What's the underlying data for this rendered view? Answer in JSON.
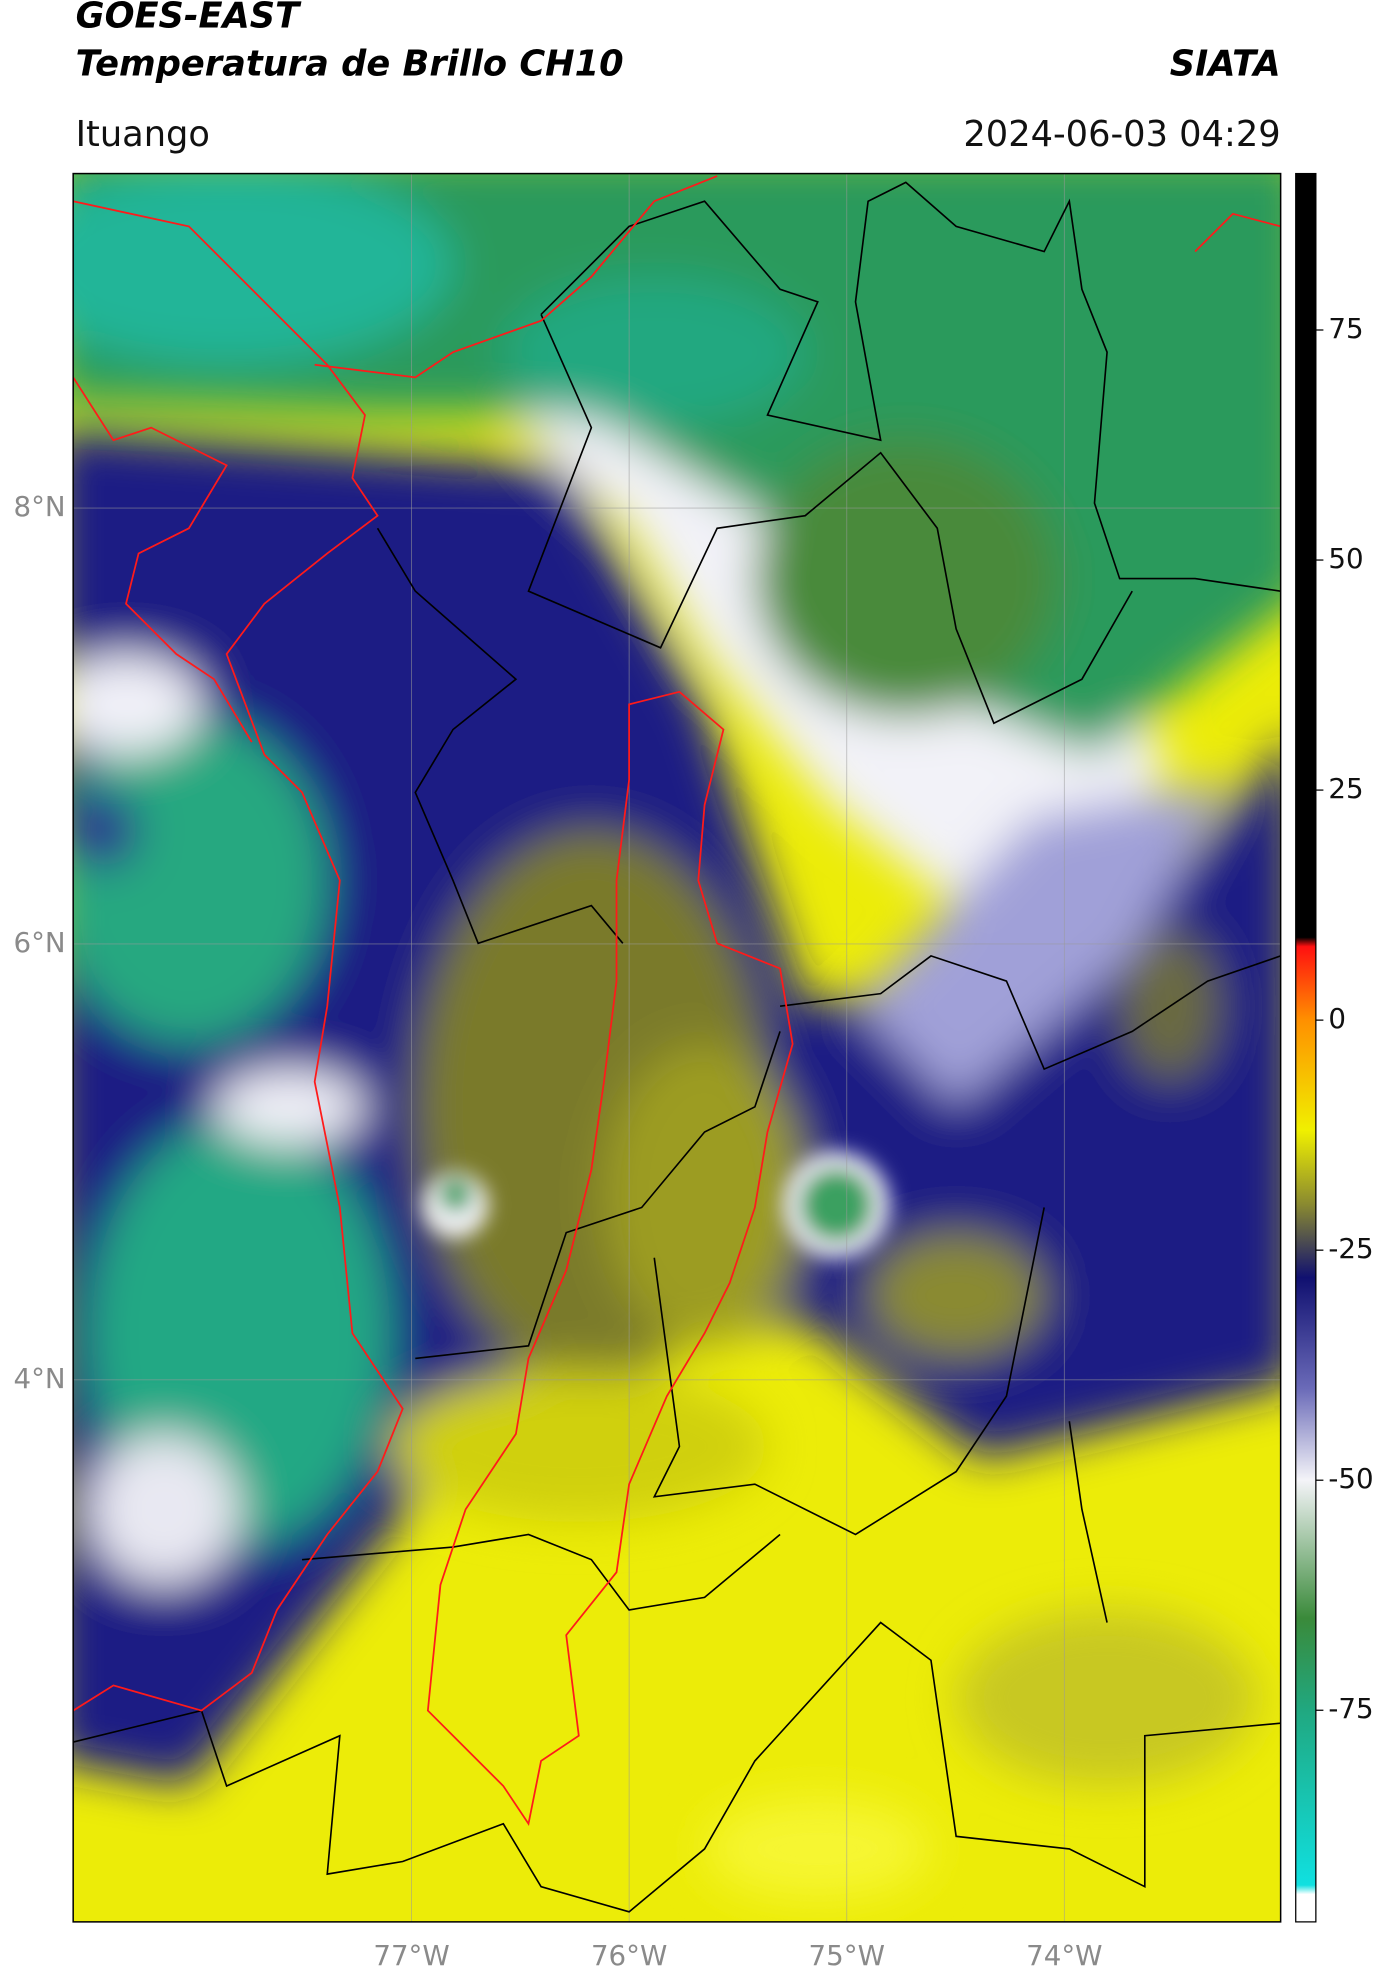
{
  "header": {
    "title": "GOES-EAST",
    "subtitle": "Temperatura de Brillo CH10",
    "source": "SIATA",
    "location": "Ituango",
    "datetime": "2024-06-03 04:29"
  },
  "map": {
    "xlim": [
      -78.555,
      -73.006
    ],
    "ylim": [
      1.513,
      9.535
    ],
    "xticks": [
      {
        "value": -77,
        "label": "77°W"
      },
      {
        "value": -76,
        "label": "76°W"
      },
      {
        "value": -75,
        "label": "75°W"
      },
      {
        "value": -74,
        "label": "74°W"
      }
    ],
    "yticks": [
      {
        "value": 8,
        "label": "8°N"
      },
      {
        "value": 6,
        "label": "6°N"
      },
      {
        "value": 4,
        "label": "4°N"
      }
    ],
    "grid": true,
    "colorbar": {
      "clim": [
        -98,
        92
      ],
      "ticks": [
        75,
        50,
        25,
        0,
        -25,
        -50,
        -75
      ],
      "colormap": [
        {
          "value": -98,
          "color": "#ffffff"
        },
        {
          "value": -95,
          "color": "#ffffff"
        },
        {
          "value": -94,
          "color": "#10e0e0"
        },
        {
          "value": -75,
          "color": "#20a880"
        },
        {
          "value": -65,
          "color": "#3a8a3a"
        },
        {
          "value": -50,
          "color": "#f4f4f8"
        },
        {
          "value": -40,
          "color": "#6a6ab8"
        },
        {
          "value": -28,
          "color": "#101070"
        },
        {
          "value": -20,
          "color": "#8a8a30"
        },
        {
          "value": -12,
          "color": "#f0f000"
        },
        {
          "value": 0,
          "color": "#ff9000"
        },
        {
          "value": 8,
          "color": "#ff1010"
        },
        {
          "value": 9,
          "color": "#000000"
        },
        {
          "value": 92,
          "color": "#000000"
        }
      ]
    }
  }
}
